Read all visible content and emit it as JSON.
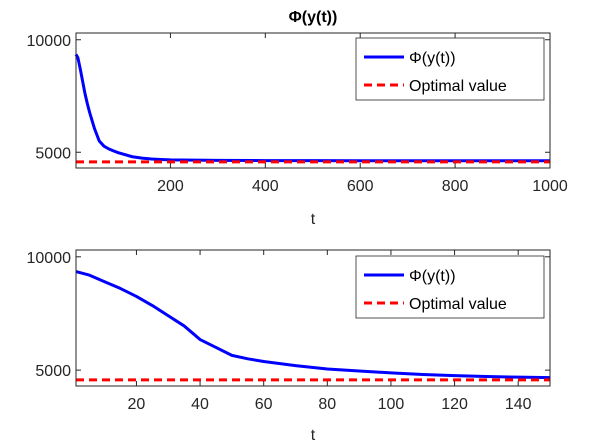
{
  "colors": {
    "series_line": "#0000ff",
    "optimal_line": "#ff0000",
    "axes": "#262626"
  },
  "chart_data": [
    {
      "type": "line",
      "title": "Φ(y(t))",
      "xlabel": "t",
      "ylabel": "",
      "xlim": [
        1,
        1000
      ],
      "ylim": [
        4300,
        10300
      ],
      "xticks": [
        200,
        400,
        600,
        800,
        1000
      ],
      "yticks": [
        5000,
        10000
      ],
      "grid": false,
      "legend_position": "top-right",
      "series": [
        {
          "name": "Φ(y(t))",
          "style": "solid",
          "x": [
            1,
            5,
            10,
            15,
            20,
            25,
            30,
            40,
            50,
            60,
            70,
            80,
            90,
            100,
            110,
            120,
            140,
            160,
            180,
            200,
            250,
            300,
            400,
            500,
            600,
            700,
            800,
            900,
            1000
          ],
          "values": [
            9350,
            9200,
            8700,
            8150,
            7600,
            7150,
            6750,
            6050,
            5500,
            5270,
            5150,
            5060,
            4980,
            4920,
            4860,
            4800,
            4740,
            4700,
            4680,
            4660,
            4650,
            4640,
            4630,
            4630,
            4625,
            4620,
            4620,
            4620,
            4620
          ]
        },
        {
          "name": "Optimal value",
          "style": "dashed",
          "x": [
            1,
            1000
          ],
          "values": [
            4570,
            4570
          ]
        }
      ]
    },
    {
      "type": "line",
      "title": "",
      "xlabel": "t",
      "ylabel": "",
      "xlim": [
        1,
        150
      ],
      "ylim": [
        4300,
        10300
      ],
      "xticks": [
        20,
        40,
        60,
        80,
        100,
        120,
        140
      ],
      "yticks": [
        5000,
        10000
      ],
      "grid": false,
      "legend_position": "top-right",
      "series": [
        {
          "name": "Φ(y(t))",
          "style": "solid",
          "x": [
            1,
            5,
            10,
            15,
            20,
            25,
            30,
            35,
            40,
            45,
            50,
            55,
            60,
            70,
            80,
            90,
            100,
            110,
            120,
            130,
            140,
            150
          ],
          "values": [
            9350,
            9200,
            8900,
            8600,
            8250,
            7850,
            7400,
            6950,
            6350,
            6000,
            5650,
            5500,
            5380,
            5200,
            5050,
            4960,
            4880,
            4810,
            4760,
            4720,
            4690,
            4670
          ]
        },
        {
          "name": "Optimal value",
          "style": "dashed",
          "x": [
            1,
            150
          ],
          "values": [
            4570,
            4570
          ]
        }
      ]
    }
  ]
}
